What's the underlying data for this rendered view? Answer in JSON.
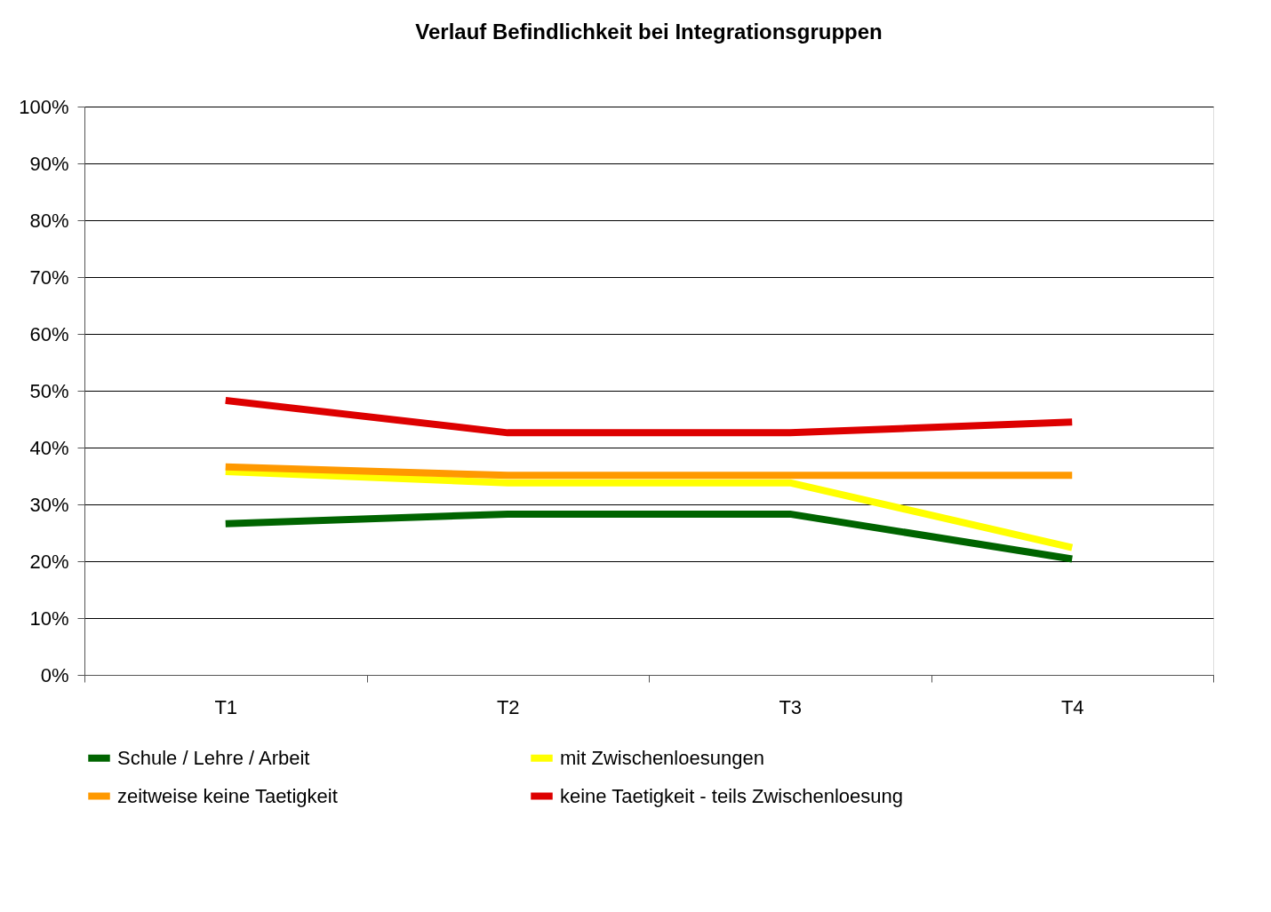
{
  "chart_data": {
    "type": "line",
    "title": "Verlauf Befindlichkeit bei Integrationsgruppen",
    "categories": [
      "T1",
      "T2",
      "T3",
      "T4"
    ],
    "series": [
      {
        "name": "Schule / Lehre / Arbeit",
        "color": "#006400",
        "values": [
          26.6,
          28.3,
          28.3,
          20.4
        ]
      },
      {
        "name": "mit Zwischenloesungen",
        "color": "#ffff00",
        "values": [
          35.8,
          33.8,
          33.8,
          22.4
        ]
      },
      {
        "name": "zeitweise keine Taetigkeit",
        "color": "#ff9900",
        "values": [
          36.6,
          35.1,
          35.1,
          35.1
        ]
      },
      {
        "name": "keine Taetigkeit - teils Zwischenloesung",
        "color": "#dd0000",
        "values": [
          48.3,
          42.6,
          42.6,
          44.5
        ]
      }
    ],
    "ylim": [
      0,
      100
    ],
    "yticks": [
      {
        "value": 0,
        "label": "0%"
      },
      {
        "value": 10,
        "label": "10%"
      },
      {
        "value": 20,
        "label": "20%"
      },
      {
        "value": 30,
        "label": "30%"
      },
      {
        "value": 40,
        "label": "40%"
      },
      {
        "value": 50,
        "label": "50%"
      },
      {
        "value": 60,
        "label": "60%"
      },
      {
        "value": 70,
        "label": "70%"
      },
      {
        "value": 80,
        "label": "80%"
      },
      {
        "value": 90,
        "label": "90%"
      },
      {
        "value": 100,
        "label": "100%"
      }
    ],
    "grid": "y",
    "legend": "bottom",
    "marker": "none",
    "line_style": "solid"
  }
}
